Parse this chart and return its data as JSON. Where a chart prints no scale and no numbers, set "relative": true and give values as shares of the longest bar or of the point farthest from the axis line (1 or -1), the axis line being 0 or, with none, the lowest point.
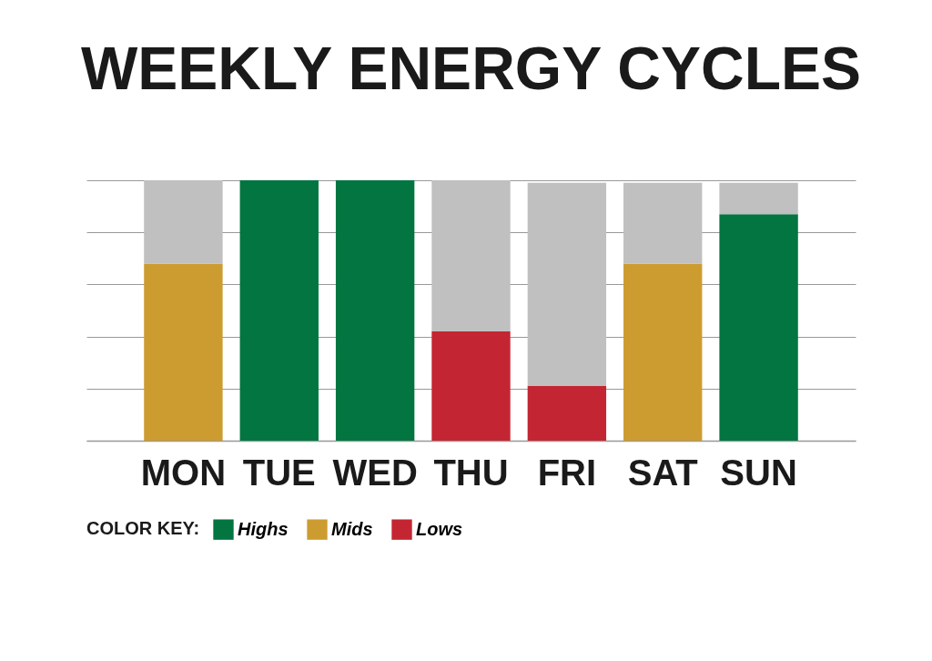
{
  "chart_data": {
    "type": "bar",
    "title": "WEEKLY ENERGY CYCLES",
    "categories": [
      "MON",
      "TUE",
      "WED",
      "THU",
      "FRI",
      "SAT",
      "SUN"
    ],
    "stacked": true,
    "relative": true,
    "grid": "y",
    "legend": "bottom",
    "legend_title": "COLOR KEY:",
    "series": [
      {
        "name": "Highs",
        "color": "#027540",
        "values": [
          null,
          1,
          1,
          null,
          null,
          null,
          0.87
        ]
      },
      {
        "name": "Mids",
        "color": "#cd9c31",
        "values": [
          0.68,
          null,
          null,
          null,
          null,
          0.68,
          null
        ]
      },
      {
        "name": "Lows",
        "color": "#c32632",
        "values": [
          null,
          null,
          null,
          0.42,
          0.21,
          null,
          null
        ]
      },
      {
        "color": "#c0c0c0",
        "values": [
          0.32,
          null,
          null,
          0.58,
          0.78,
          0.31,
          0.12
        ]
      }
    ]
  }
}
